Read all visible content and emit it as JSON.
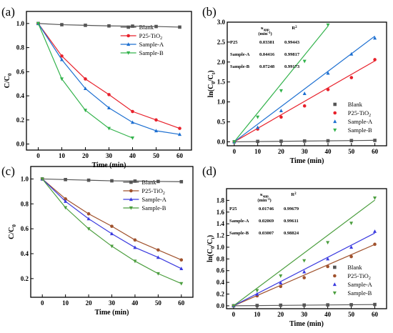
{
  "chart_data": [
    {
      "type": "line",
      "panel_label": "(a)",
      "xlabel": "Time (min)",
      "ylabel": "C/C",
      "ylabel_sub": "0",
      "xlim": [
        -5,
        65
      ],
      "ylim": [
        -0.05,
        1.1
      ],
      "xticks": [
        0,
        10,
        20,
        30,
        40,
        50,
        60
      ],
      "yticks": [
        0.0,
        0.2,
        0.4,
        0.6,
        0.8,
        1.0
      ],
      "ytick_decimals": 1,
      "legend_position": "top-right",
      "series": [
        {
          "name": "Blank",
          "color": "#555555",
          "marker": "square",
          "x": [
            0,
            10,
            20,
            30,
            40,
            50,
            60
          ],
          "y": [
            1.0,
            0.99,
            0.985,
            0.98,
            0.978,
            0.975,
            0.97
          ]
        },
        {
          "name": "P25-TiO",
          "name_sub": "2",
          "color": "#e8212b",
          "marker": "circle",
          "x": [
            0,
            10,
            20,
            30,
            40,
            50,
            60
          ],
          "y": [
            1.0,
            0.73,
            0.54,
            0.41,
            0.27,
            0.2,
            0.13
          ]
        },
        {
          "name": "Sample-A",
          "color": "#1c6fd1",
          "marker": "triangle-up",
          "x": [
            0,
            10,
            20,
            30,
            40,
            50,
            60
          ],
          "y": [
            1.0,
            0.7,
            0.46,
            0.3,
            0.18,
            0.11,
            0.08
          ]
        },
        {
          "name": "Sample-B",
          "color": "#33b34c",
          "marker": "triangle-down",
          "x": [
            0,
            10,
            20,
            30,
            40
          ],
          "y": [
            1.0,
            0.54,
            0.28,
            0.13,
            0.05
          ]
        }
      ]
    },
    {
      "type": "scatter",
      "panel_label": "(b)",
      "xlabel": "Time (min)",
      "ylabel": "ln(C",
      "ylabel_sub1": "0",
      "ylabel_mid": "/C",
      "ylabel_sub2": "t",
      "ylabel_end": ")",
      "xlim": [
        -3,
        65
      ],
      "ylim": [
        -0.1,
        3.0
      ],
      "xticks": [
        0,
        10,
        20,
        30,
        40,
        50,
        60
      ],
      "yticks": [
        0.0,
        0.5,
        1.0,
        1.5,
        2.0,
        2.5,
        3.0
      ],
      "ytick_decimals": 1,
      "legend_position": "bottom-right",
      "fit_lines": true,
      "table": {
        "header_k": "κ",
        "header_k_sub": "app",
        "header_k_unit": "(min",
        "header_k_sup": "-1",
        "header_k_close": ")",
        "header_r": "R",
        "header_r_sup": "2",
        "rows": [
          {
            "label": "P25",
            "k": "0.03381",
            "r2": "0.99443"
          },
          {
            "label": "Sample-A",
            "k": "0.04416",
            "r2": "0.99817"
          },
          {
            "label": "Sample-B",
            "k": "0.07248",
            "r2": "0.99173"
          }
        ]
      },
      "series": [
        {
          "name": "Blank",
          "color": "#555555",
          "marker": "square",
          "slope": 0.0006,
          "x": [
            0,
            10,
            20,
            30,
            40,
            50,
            60
          ],
          "y": [
            0.0,
            0.01,
            0.015,
            0.02,
            0.025,
            0.03,
            0.035
          ]
        },
        {
          "name": "P25-TiO",
          "name_sub": "2",
          "color": "#e8212b",
          "marker": "circle",
          "slope": 0.03381,
          "x": [
            0,
            10,
            20,
            30,
            40,
            50,
            60
          ],
          "y": [
            0.0,
            0.32,
            0.62,
            0.9,
            1.31,
            1.61,
            2.06
          ]
        },
        {
          "name": "Sample-A",
          "color": "#1c6fd1",
          "marker": "triangle-up",
          "slope": 0.04416,
          "x": [
            0,
            10,
            20,
            30,
            40,
            50,
            60
          ],
          "y": [
            0.0,
            0.36,
            0.78,
            1.21,
            1.72,
            2.2,
            2.6
          ]
        },
        {
          "name": "Sample-B",
          "color": "#33b34c",
          "marker": "triangle-down",
          "slope": 0.07248,
          "x": [
            0,
            10,
            20,
            30,
            40
          ],
          "y": [
            0.0,
            0.62,
            1.28,
            2.02,
            2.93
          ]
        }
      ]
    },
    {
      "type": "line",
      "panel_label": "(c)",
      "xlabel": "Time (min)",
      "ylabel": "C/C",
      "ylabel_sub": "0",
      "xlim": [
        -5,
        65
      ],
      "ylim": [
        0.05,
        1.1
      ],
      "xticks": [
        0,
        10,
        20,
        30,
        40,
        50,
        60
      ],
      "yticks": [
        0.2,
        0.4,
        0.6,
        0.8,
        1.0
      ],
      "ytick_decimals": 1,
      "legend_position": "top-right",
      "series": [
        {
          "name": "Blank",
          "color": "#555555",
          "marker": "square",
          "x": [
            0,
            10,
            20,
            30,
            40,
            50,
            60
          ],
          "y": [
            1.0,
            0.995,
            0.99,
            0.985,
            0.983,
            0.98,
            0.978
          ]
        },
        {
          "name": "P25-TiO",
          "name_sub": "2",
          "color": "#a0522d",
          "marker": "circle",
          "x": [
            0,
            10,
            20,
            30,
            40,
            50,
            60
          ],
          "y": [
            1.0,
            0.84,
            0.72,
            0.62,
            0.51,
            0.43,
            0.35
          ]
        },
        {
          "name": "Sample-A",
          "color": "#3a3adf",
          "marker": "triangle-up",
          "x": [
            0,
            10,
            20,
            30,
            40,
            50,
            60
          ],
          "y": [
            1.0,
            0.82,
            0.68,
            0.56,
            0.45,
            0.37,
            0.28
          ]
        },
        {
          "name": "Sample-B",
          "color": "#4b9e3e",
          "marker": "triangle-down",
          "x": [
            0,
            10,
            20,
            30,
            40,
            50,
            60
          ],
          "y": [
            1.0,
            0.77,
            0.6,
            0.46,
            0.34,
            0.24,
            0.16
          ]
        }
      ]
    },
    {
      "type": "scatter",
      "panel_label": "(d)",
      "xlabel": "Time (min)",
      "ylabel": "ln(C",
      "ylabel_sub1": "0",
      "ylabel_mid": "/C",
      "ylabel_sub2": "t",
      "ylabel_end": ")",
      "xlim": [
        -3,
        65
      ],
      "ylim": [
        -0.05,
        2.0
      ],
      "xticks": [
        0,
        10,
        20,
        30,
        40,
        50,
        60
      ],
      "yticks": [
        0.0,
        0.2,
        0.4,
        0.6,
        0.8,
        1.0,
        1.2,
        1.4,
        1.6,
        1.8
      ],
      "ytick_decimals": 1,
      "legend_position": "bottom-right",
      "fit_lines": true,
      "table": {
        "header_k": "κ",
        "header_k_sub": "app",
        "header_k_unit": "(min",
        "header_k_sup": "-1",
        "header_k_close": ")",
        "header_r": "R",
        "header_r_sup": "2",
        "rows": [
          {
            "label": "P25",
            "k": "0.01746",
            "r2": "0.99679"
          },
          {
            "label": "Sample-A",
            "k": "0.02069",
            "r2": "0.99611"
          },
          {
            "label": "Sample-B",
            "k": "0.03007",
            "r2": "0.98824"
          }
        ]
      },
      "series": [
        {
          "name": "Blank",
          "color": "#555555",
          "marker": "square",
          "slope": 0.00035,
          "x": [
            0,
            10,
            20,
            30,
            40,
            50,
            60
          ],
          "y": [
            0.0,
            0.005,
            0.01,
            0.012,
            0.015,
            0.018,
            0.022
          ]
        },
        {
          "name": "P25-TiO",
          "name_sub": "2",
          "color": "#a0522d",
          "marker": "circle",
          "slope": 0.01746,
          "x": [
            0,
            10,
            20,
            30,
            40,
            50,
            60
          ],
          "y": [
            0.0,
            0.17,
            0.33,
            0.48,
            0.67,
            0.84,
            1.05
          ]
        },
        {
          "name": "Sample-A",
          "color": "#3a3adf",
          "marker": "triangle-up",
          "slope": 0.02069,
          "x": [
            0,
            10,
            20,
            30,
            40,
            50,
            60
          ],
          "y": [
            0.0,
            0.2,
            0.39,
            0.58,
            0.8,
            1.0,
            1.27
          ]
        },
        {
          "name": "Sample-B",
          "color": "#4b9e3e",
          "marker": "triangle-down",
          "slope": 0.03007,
          "x": [
            0,
            10,
            20,
            30,
            40,
            50,
            60
          ],
          "y": [
            0.0,
            0.26,
            0.51,
            0.77,
            1.08,
            1.41,
            1.84
          ]
        }
      ]
    }
  ]
}
